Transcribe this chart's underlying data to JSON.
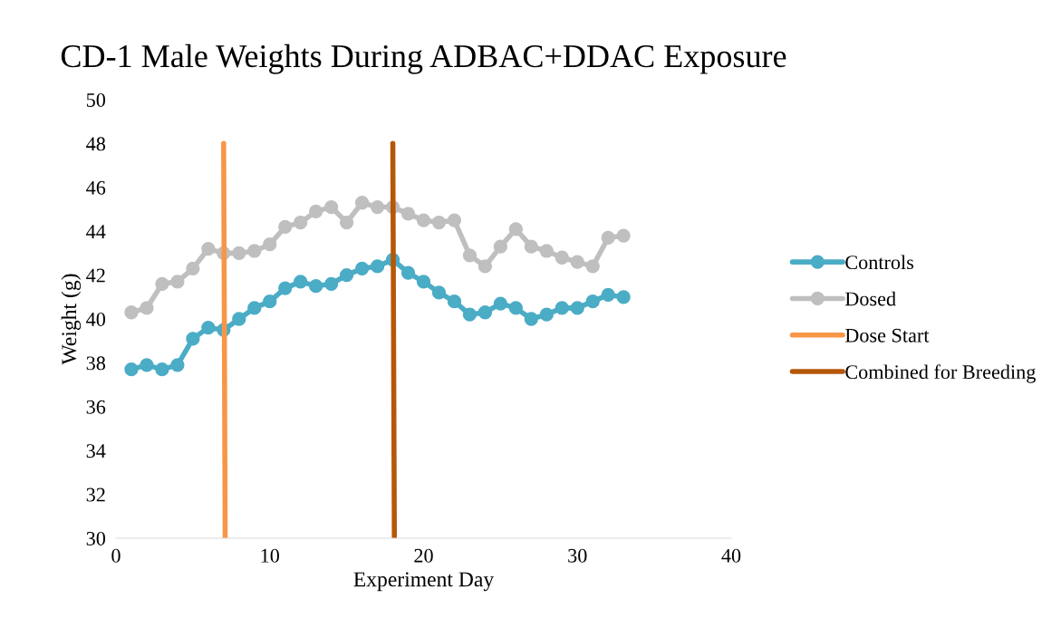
{
  "chart_data": {
    "type": "line",
    "title": "CD-1 Male Weights During ADBAC+DDAC Exposure",
    "xlabel": "Experiment Day",
    "ylabel": "Weight (g)",
    "x": [
      1,
      2,
      3,
      4,
      5,
      6,
      7,
      8,
      9,
      10,
      11,
      12,
      13,
      14,
      15,
      16,
      17,
      18,
      19,
      20,
      21,
      22,
      23,
      24,
      25,
      26,
      27,
      28,
      29,
      30,
      31,
      32,
      33
    ],
    "series": [
      {
        "name": "Controls",
        "color": "#4bacc6",
        "marker": "circle",
        "values": [
          37.7,
          37.9,
          37.7,
          37.9,
          39.1,
          39.6,
          39.5,
          40.0,
          40.5,
          40.8,
          41.4,
          41.7,
          41.5,
          41.6,
          42.0,
          42.3,
          42.4,
          42.7,
          42.1,
          41.7,
          41.2,
          40.8,
          40.2,
          40.3,
          40.7,
          40.5,
          40.0,
          40.2,
          40.5,
          40.5,
          40.8,
          41.1,
          41.0
        ]
      },
      {
        "name": "Dosed",
        "color": "#bfbfbf",
        "marker": "circle",
        "values": [
          40.3,
          40.5,
          41.6,
          41.7,
          42.3,
          43.2,
          43.0,
          43.0,
          43.1,
          43.4,
          44.2,
          44.4,
          44.9,
          45.1,
          44.4,
          45.3,
          45.1,
          45.1,
          44.8,
          44.5,
          44.4,
          44.5,
          42.9,
          42.4,
          43.3,
          44.1,
          43.3,
          43.1,
          42.8,
          42.6,
          42.4,
          43.7,
          43.8
        ]
      },
      {
        "name": "Dose Start",
        "color": "#f79646",
        "marker": "none",
        "x": [
          7.0,
          7.1
        ],
        "values": [
          48,
          30
        ]
      },
      {
        "name": "Combined for Breeding",
        "color": "#b65708",
        "marker": "none",
        "x": [
          18.0,
          18.1
        ],
        "values": [
          48,
          30
        ]
      }
    ],
    "xlim": [
      0,
      40
    ],
    "xticks": [
      0,
      10,
      20,
      30,
      40
    ],
    "ylim": [
      30,
      50
    ],
    "yticks": [
      30,
      32,
      34,
      36,
      38,
      40,
      42,
      44,
      46,
      48,
      50
    ],
    "grid": false,
    "legend": "right",
    "line_style": "solid"
  }
}
